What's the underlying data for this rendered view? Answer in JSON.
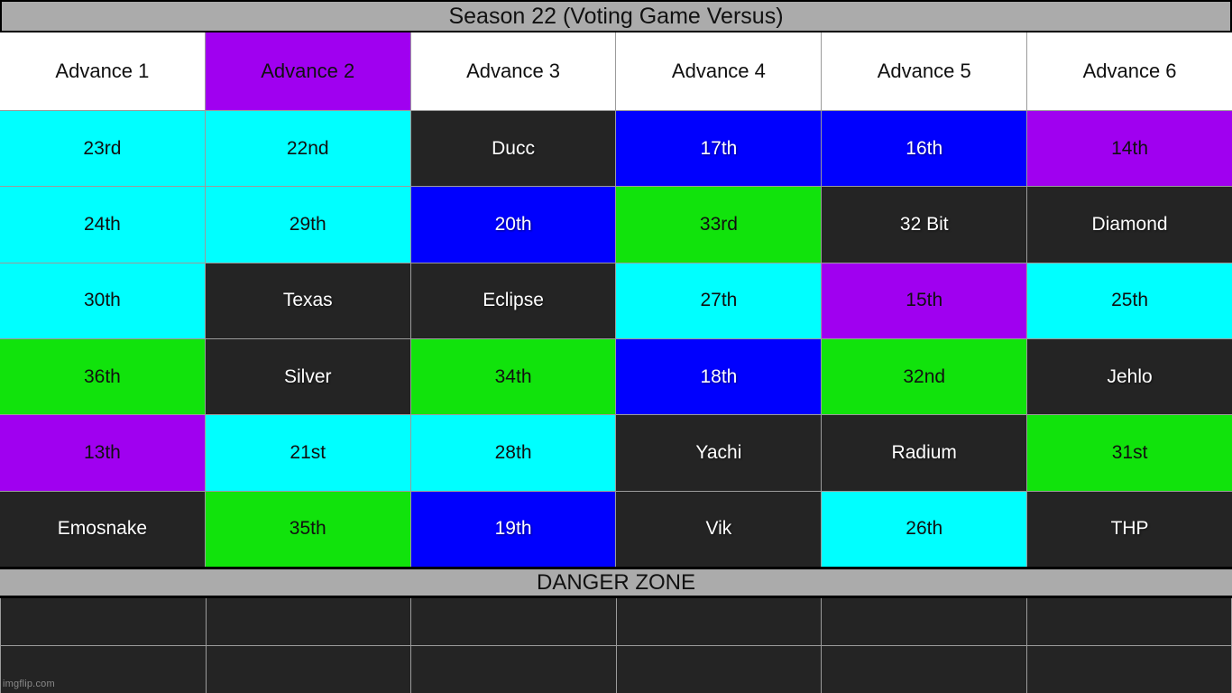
{
  "title_bar": {
    "text": "Season 22 (Voting Game Versus)"
  },
  "palette": {
    "white": "#ffffff",
    "cyan": "#00ffff",
    "blue": "#0000fe",
    "green": "#11e30c",
    "purple": "#a000f0",
    "dark": "#242424",
    "bar_gray": "#ababab",
    "grid_line": "#9b9b9b"
  },
  "header": {
    "cells": [
      {
        "label": "Advance 1",
        "color": "white"
      },
      {
        "label": "Advance 2",
        "color": "purple"
      },
      {
        "label": "Advance 3",
        "color": "white"
      },
      {
        "label": "Advance 4",
        "color": "white"
      },
      {
        "label": "Advance 5",
        "color": "white"
      },
      {
        "label": "Advance 6",
        "color": "white"
      }
    ]
  },
  "body": {
    "rows": [
      {
        "cells": [
          {
            "label": "23rd",
            "color": "cyan"
          },
          {
            "label": "22nd",
            "color": "cyan"
          },
          {
            "label": "Ducc",
            "color": "dark"
          },
          {
            "label": "17th",
            "color": "blue"
          },
          {
            "label": "16th",
            "color": "blue"
          },
          {
            "label": "14th",
            "color": "purple"
          }
        ]
      },
      {
        "cells": [
          {
            "label": "24th",
            "color": "cyan"
          },
          {
            "label": "29th",
            "color": "cyan"
          },
          {
            "label": "20th",
            "color": "blue"
          },
          {
            "label": "33rd",
            "color": "green"
          },
          {
            "label": "32 Bit",
            "color": "dark"
          },
          {
            "label": "Diamond",
            "color": "dark"
          }
        ]
      },
      {
        "cells": [
          {
            "label": "30th",
            "color": "cyan"
          },
          {
            "label": "Texas",
            "color": "dark"
          },
          {
            "label": "Eclipse",
            "color": "dark"
          },
          {
            "label": "27th",
            "color": "cyan"
          },
          {
            "label": "15th",
            "color": "purple"
          },
          {
            "label": "25th",
            "color": "cyan"
          }
        ]
      },
      {
        "cells": [
          {
            "label": "36th",
            "color": "green"
          },
          {
            "label": "Silver",
            "color": "dark"
          },
          {
            "label": "34th",
            "color": "green"
          },
          {
            "label": "18th",
            "color": "blue"
          },
          {
            "label": "32nd",
            "color": "green"
          },
          {
            "label": "Jehlo",
            "color": "dark"
          }
        ]
      },
      {
        "cells": [
          {
            "label": "13th",
            "color": "purple"
          },
          {
            "label": "21st",
            "color": "cyan"
          },
          {
            "label": "28th",
            "color": "cyan"
          },
          {
            "label": "Yachi",
            "color": "dark"
          },
          {
            "label": "Radium",
            "color": "dark"
          },
          {
            "label": "31st",
            "color": "green"
          }
        ]
      },
      {
        "cells": [
          {
            "label": "Emosnake",
            "color": "dark"
          },
          {
            "label": "35th",
            "color": "green"
          },
          {
            "label": "19th",
            "color": "blue"
          },
          {
            "label": "Vik",
            "color": "dark"
          },
          {
            "label": "26th",
            "color": "cyan"
          },
          {
            "label": "THP",
            "color": "dark"
          }
        ]
      }
    ]
  },
  "danger": {
    "title": "DANGER ZONE",
    "rows": 2,
    "cols": 6,
    "cell_color": "dark"
  },
  "watermark": {
    "text": "imgflip.com"
  },
  "chart_data": {
    "type": "table",
    "title": "Season 22 (Voting Game Versus)",
    "columns": [
      "Advance 1",
      "Advance 2",
      "Advance 3",
      "Advance 4",
      "Advance 5",
      "Advance 6"
    ],
    "rows": [
      [
        "23rd",
        "22nd",
        "Ducc",
        "17th",
        "16th",
        "14th"
      ],
      [
        "24th",
        "29th",
        "20th",
        "33rd",
        "32 Bit",
        "Diamond"
      ],
      [
        "30th",
        "Texas",
        "Eclipse",
        "27th",
        "15th",
        "25th"
      ],
      [
        "36th",
        "Silver",
        "34th",
        "18th",
        "32nd",
        "Jehlo"
      ],
      [
        "13th",
        "21st",
        "28th",
        "Yachi",
        "Radium",
        "31st"
      ],
      [
        "Emosnake",
        "35th",
        "19th",
        "Vik",
        "26th",
        "THP"
      ]
    ],
    "footer_section": "DANGER ZONE",
    "footer_rows_empty": 2,
    "cell_colors": [
      [
        "cyan",
        "cyan",
        "dark",
        "blue",
        "blue",
        "purple"
      ],
      [
        "cyan",
        "cyan",
        "blue",
        "green",
        "dark",
        "dark"
      ],
      [
        "cyan",
        "dark",
        "dark",
        "cyan",
        "purple",
        "cyan"
      ],
      [
        "green",
        "dark",
        "green",
        "blue",
        "green",
        "dark"
      ],
      [
        "purple",
        "cyan",
        "cyan",
        "dark",
        "dark",
        "green"
      ],
      [
        "dark",
        "green",
        "blue",
        "dark",
        "cyan",
        "dark"
      ]
    ],
    "header_colors": [
      "white",
      "purple",
      "white",
      "white",
      "white",
      "white"
    ]
  }
}
